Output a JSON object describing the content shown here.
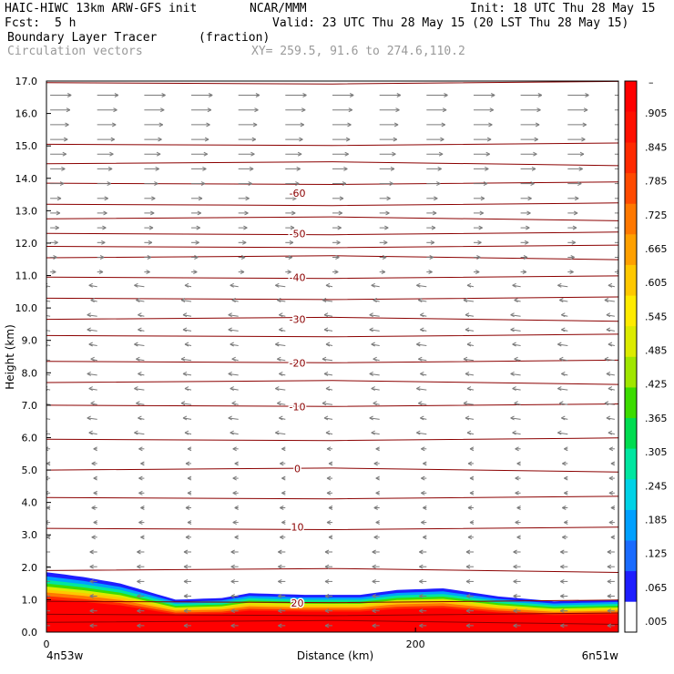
{
  "header": {
    "line1_left": "HAIC-HIWC 13km ARW-GFS init",
    "line1_mid": "NCAR/MMM",
    "line1_right": "Init: 18 UTC Thu 28 May 15",
    "fcst_label": "Fcst:",
    "fcst_value": "5 h",
    "valid": "Valid: 23 UTC Thu 28 May 15 (20 LST Thu 28 May 15)",
    "field_name": "Boundary Layer Tracer",
    "field_units": "(fraction)",
    "vector_name": "Circulation vectors",
    "xy_range": "XY= 259.5, 91.6 to 274.6,110.2"
  },
  "chart_data": {
    "type": "heatmap",
    "title": "Boundary Layer Tracer (fraction)",
    "xlabel": "Distance (km)",
    "ylabel": "Height (km)",
    "xlim": [
      0,
      310
    ],
    "ylim": [
      0,
      17
    ],
    "x_ticks": [
      0,
      200
    ],
    "x_tick_labels": [
      "0",
      "200"
    ],
    "x_end_labels": [
      "4n53w",
      "6n51w"
    ],
    "y_ticks": [
      0,
      1,
      2,
      3,
      4,
      5,
      6,
      7,
      8,
      9,
      10,
      11,
      12,
      13,
      14,
      15,
      16,
      17
    ],
    "y_tick_labels": [
      "0.0",
      "1.0",
      "2.0",
      "3.0",
      "4.0",
      "5.0",
      "6.0",
      "7.0",
      "8.0",
      "9.0",
      "10.0",
      "11.0",
      "12.0",
      "13.0",
      "14.0",
      "15.0",
      "16.0",
      "17.0"
    ],
    "colorbar_labels": [
      ".005",
      ".065",
      ".125",
      ".185",
      ".245",
      ".305",
      ".365",
      ".425",
      ".485",
      ".545",
      ".605",
      ".665",
      ".725",
      ".785",
      ".845",
      ".905"
    ],
    "colorbar_top_label": "–",
    "colorbar_colors": [
      "#ffffff",
      "#1e1eff",
      "#1a6bff",
      "#00a0ff",
      "#00d2e6",
      "#00e6a0",
      "#00dc50",
      "#3cdc00",
      "#a0e600",
      "#dceb00",
      "#ffeb00",
      "#ffc800",
      "#ffa000",
      "#ff7800",
      "#ff4a00",
      "#ff2a00",
      "#ff1000",
      "#ff0000"
    ],
    "temperature_contours": [
      {
        "label": "20",
        "y": 0.9
      },
      {
        "label": "10",
        "y": 3.25
      },
      {
        "label": "0",
        "y": 5.05
      },
      {
        "label": "-10",
        "y": 6.95
      },
      {
        "label": "-20",
        "y": 8.3
      },
      {
        "label": "-30",
        "y": 9.65
      },
      {
        "label": "-40",
        "y": 10.95
      },
      {
        "label": "-50",
        "y": 12.3
      },
      {
        "label": "-60",
        "y": 13.55
      }
    ],
    "isentrope_heights": [
      0.3,
      0.55,
      0.95,
      1.9,
      3.2,
      4.15,
      5.0,
      5.95,
      7.0,
      7.7,
      8.35,
      9.15,
      9.65,
      10.3,
      10.95,
      11.55,
      11.9,
      12.3,
      12.75,
      13.2,
      13.85,
      14.45,
      15.05,
      16.95
    ],
    "tracer_top": [
      {
        "x": 0,
        "y": 1.85
      },
      {
        "x": 20,
        "y": 1.7
      },
      {
        "x": 40,
        "y": 1.5
      },
      {
        "x": 70,
        "y": 1.0
      },
      {
        "x": 95,
        "y": 1.05
      },
      {
        "x": 110,
        "y": 1.2
      },
      {
        "x": 140,
        "y": 1.15
      },
      {
        "x": 170,
        "y": 1.15
      },
      {
        "x": 190,
        "y": 1.3
      },
      {
        "x": 215,
        "y": 1.35
      },
      {
        "x": 245,
        "y": 1.1
      },
      {
        "x": 275,
        "y": 0.95
      },
      {
        "x": 310,
        "y": 1.0
      }
    ],
    "vector_columns": 13,
    "vector_rows_per_km": 2.2
  }
}
